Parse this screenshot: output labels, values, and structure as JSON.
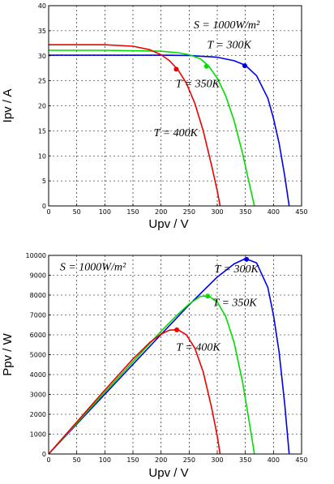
{
  "chart_data": [
    {
      "type": "line",
      "xlabel": "Upv / V",
      "ylabel": "Ipv / A",
      "xlim": [
        0,
        450
      ],
      "ylim": [
        0,
        40
      ],
      "xticks": [
        0,
        50,
        100,
        150,
        200,
        250,
        300,
        350,
        400,
        450
      ],
      "yticks": [
        0,
        5,
        10,
        15,
        20,
        25,
        30,
        35,
        40
      ],
      "grid": "dashed",
      "annotations": [
        {
          "text": "S = 1000W/m²",
          "x": 258,
          "y": 35.5
        },
        {
          "text": "T = 300K",
          "x": 282,
          "y": 31.5
        },
        {
          "text": "T = 350K",
          "x": 226,
          "y": 23.7
        },
        {
          "text": "T = 400K",
          "x": 187,
          "y": 13.9
        }
      ],
      "series": [
        {
          "temperature_K": 300,
          "color": "#0000ee",
          "x": [
            0,
            100,
            200,
            250,
            300,
            330,
            350,
            370,
            390,
            400,
            410,
            420,
            428
          ],
          "y": [
            30.1,
            30.1,
            30.1,
            30.05,
            29.7,
            29.0,
            28.1,
            26.0,
            21.5,
            17.5,
            12.5,
            6.0,
            0
          ],
          "mpp": {
            "x": 349,
            "y": 28.0
          }
        },
        {
          "temperature_K": 350,
          "color": "#00dd00",
          "x": [
            0,
            100,
            200,
            230,
            250,
            270,
            285,
            300,
            315,
            330,
            345,
            355,
            362,
            366
          ],
          "y": [
            31.1,
            31.1,
            30.9,
            30.6,
            30.2,
            29.4,
            27.9,
            25.5,
            22.0,
            17.0,
            10.5,
            5.5,
            2.0,
            0
          ],
          "mpp": {
            "x": 281,
            "y": 27.9
          }
        },
        {
          "temperature_K": 400,
          "color": "#ee0000",
          "x": [
            0,
            100,
            150,
            180,
            200,
            215,
            230,
            245,
            260,
            275,
            290,
            300,
            305
          ],
          "y": [
            32.2,
            32.2,
            31.9,
            31.2,
            30.2,
            29.0,
            27.2,
            24.5,
            20.5,
            15.0,
            8.0,
            3.0,
            0
          ],
          "mpp": {
            "x": 227,
            "y": 27.3
          }
        }
      ]
    },
    {
      "type": "line",
      "xlabel": "Upv / V",
      "ylabel": "Ppv / W",
      "xlim": [
        0,
        450
      ],
      "ylim": [
        0,
        10000
      ],
      "xticks": [
        0,
        50,
        100,
        150,
        200,
        250,
        300,
        350,
        400,
        450
      ],
      "yticks": [
        0,
        1000,
        2000,
        3000,
        4000,
        5000,
        6000,
        7000,
        8000,
        9000,
        10000
      ],
      "grid": "dashed",
      "annotations": [
        {
          "text": "S = 1000W/m²",
          "x": 20,
          "y": 9250
        },
        {
          "text": "T = 300K",
          "x": 295,
          "y": 9150
        },
        {
          "text": "T = 350K",
          "x": 292,
          "y": 7450
        },
        {
          "text": "T = 400K",
          "x": 227,
          "y": 5200
        }
      ],
      "series": [
        {
          "temperature_K": 300,
          "color": "#0000ee",
          "x": [
            0,
            100,
            200,
            250,
            300,
            330,
            350,
            370,
            390,
            400,
            410,
            420,
            428
          ],
          "y": [
            0,
            3010,
            6020,
            7512,
            8910,
            9570,
            9835,
            9620,
            8385,
            7000,
            5125,
            2520,
            0
          ],
          "mpp": {
            "x": 352,
            "y": 9800
          }
        },
        {
          "temperature_K": 350,
          "color": "#00dd00",
          "x": [
            0,
            100,
            200,
            230,
            250,
            270,
            285,
            300,
            315,
            330,
            345,
            355,
            362,
            366
          ],
          "y": [
            0,
            3110,
            6180,
            7038,
            7550,
            7938,
            7952,
            7650,
            6930,
            5610,
            3623,
            1953,
            724,
            0
          ],
          "mpp": {
            "x": 283,
            "y": 7950
          }
        },
        {
          "temperature_K": 400,
          "color": "#ee0000",
          "x": [
            0,
            100,
            150,
            180,
            200,
            215,
            230,
            245,
            260,
            275,
            290,
            300,
            305
          ],
          "y": [
            0,
            3220,
            4785,
            5616,
            6040,
            6235,
            6256,
            6003,
            5330,
            4125,
            2320,
            900,
            0
          ],
          "mpp": {
            "x": 228,
            "y": 6250
          }
        }
      ]
    }
  ]
}
